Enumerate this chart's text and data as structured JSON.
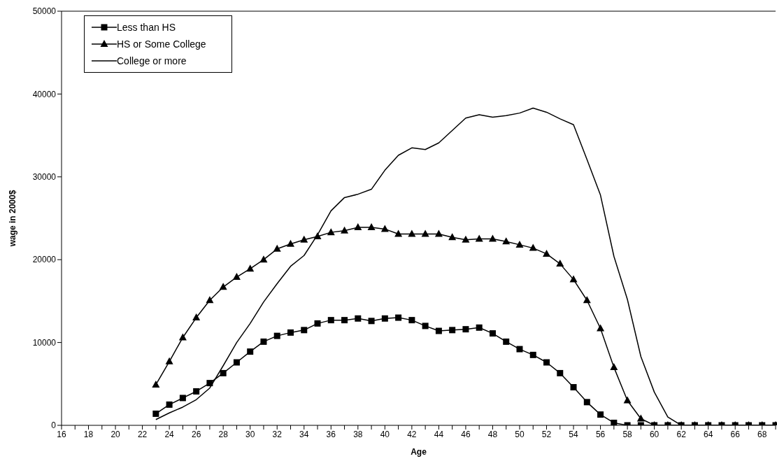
{
  "chart_data": {
    "type": "line",
    "xlabel": "Age",
    "ylabel": "wage in 2000$",
    "categories": [
      "16",
      null,
      "18",
      null,
      "20",
      null,
      "22",
      null,
      "24",
      null,
      "26",
      null,
      "28",
      null,
      "30",
      null,
      "32",
      null,
      "34",
      null,
      "36",
      null,
      "38",
      null,
      "40",
      null,
      "42",
      null,
      "44",
      null,
      "46",
      null,
      "48",
      null,
      "50",
      null,
      "52",
      null,
      "54",
      null,
      "56",
      null,
      "58",
      null,
      "60",
      null,
      "62",
      null,
      "64",
      null,
      "66",
      null,
      "68",
      null
    ],
    "series": [
      {
        "name": "Less than HS",
        "color": "#000000",
        "marker": "square",
        "values": [
          null,
          null,
          null,
          null,
          null,
          null,
          null,
          1400,
          2500,
          3300,
          4100,
          5100,
          6300,
          7600,
          8900,
          10100,
          10800,
          11200,
          11500,
          12300,
          12700,
          12700,
          12900,
          12600,
          12900,
          13000,
          12700,
          12000,
          11400,
          11500,
          11600,
          11800,
          11100,
          10100,
          9200,
          8500,
          7600,
          6300,
          4600,
          2800,
          1300,
          300,
          0,
          0,
          0,
          0,
          0,
          0,
          0,
          0,
          0,
          0,
          0,
          0
        ]
      },
      {
        "name": "HS or Some College",
        "color": "#000000",
        "marker": "triangle",
        "values": [
          null,
          null,
          null,
          null,
          null,
          null,
          null,
          4900,
          7700,
          10600,
          13000,
          15100,
          16700,
          17900,
          18900,
          20000,
          21300,
          21900,
          22400,
          22800,
          23300,
          23500,
          23900,
          23900,
          23700,
          23100,
          23100,
          23100,
          23100,
          22700,
          22400,
          22500,
          22500,
          22200,
          21800,
          21400,
          20700,
          19500,
          17600,
          15100,
          11700,
          7000,
          3000,
          800,
          0,
          0,
          0,
          0,
          0,
          0,
          0,
          0,
          0,
          0
        ]
      },
      {
        "name": "College or more",
        "color": "#000000",
        "marker": "none",
        "values": [
          null,
          null,
          null,
          null,
          null,
          null,
          null,
          700,
          1500,
          2200,
          3100,
          4500,
          7200,
          10000,
          12300,
          14900,
          17100,
          19200,
          20500,
          23000,
          25900,
          27500,
          27900,
          28500,
          30800,
          32600,
          33500,
          33300,
          34100,
          35600,
          37100,
          37500,
          37200,
          37400,
          37700,
          38300,
          37800,
          37000,
          36300,
          32100,
          27800,
          20400,
          15200,
          8300,
          4000,
          1000,
          0,
          0,
          0,
          0,
          0,
          0,
          0,
          0
        ]
      }
    ],
    "ylim": [
      0,
      50000
    ],
    "yticks": [
      0,
      10000,
      20000,
      30000,
      40000,
      50000
    ],
    "grid": false,
    "legend": "top left",
    "line_style": "solid"
  }
}
